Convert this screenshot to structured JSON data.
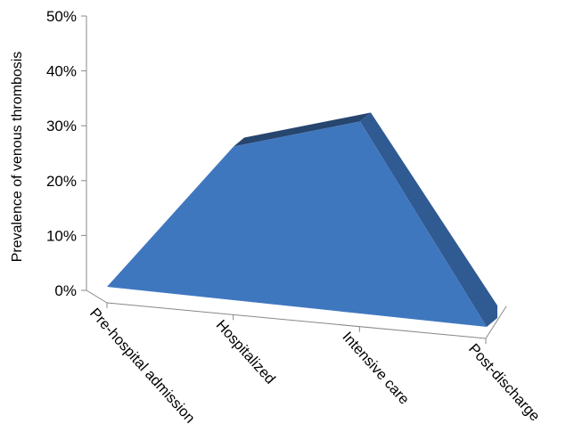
{
  "chart_data": {
    "type": "area",
    "title": "",
    "xlabel": "",
    "ylabel": "Prevalence of venous thrombosis",
    "ylim": [
      0,
      50
    ],
    "y_ticks": [
      "0%",
      "10%",
      "20%",
      "30%",
      "40%",
      "50%"
    ],
    "categories": [
      "Pre-hospital admission",
      "Hospitalized",
      "Intensive care",
      "Post-discharge"
    ],
    "series": [
      {
        "values": [
          0,
          28,
          35,
          0
        ]
      }
    ],
    "colors": {
      "front": "#3f77bf",
      "side": "#2f5a92",
      "top": "#27466f",
      "axis": "#888888"
    }
  }
}
